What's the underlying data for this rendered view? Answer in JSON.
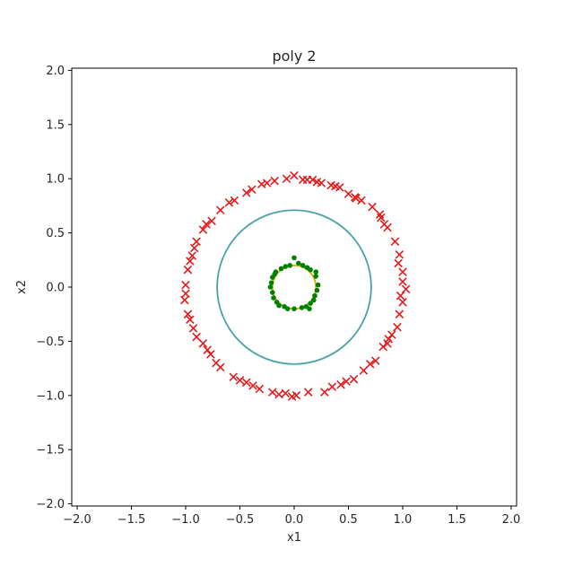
{
  "chart_data": {
    "type": "scatter",
    "title": "poly 2",
    "xlabel": "x1",
    "ylabel": "x2",
    "xlim": [
      -2.05,
      2.05
    ],
    "ylim": [
      -2.02,
      2.02
    ],
    "xticks": [
      -2.0,
      -1.5,
      -1.0,
      -0.5,
      0.0,
      0.5,
      1.0,
      1.5,
      2.0
    ],
    "yticks": [
      -2.0,
      -1.5,
      -1.0,
      -0.5,
      0.0,
      0.5,
      1.0,
      1.5,
      2.0
    ],
    "xtick_labels": [
      "−2.0",
      "−1.5",
      "−1.0",
      "−0.5",
      "0.0",
      "0.5",
      "1.0",
      "1.5",
      "2.0"
    ],
    "ytick_labels": [
      "−2.0",
      "−1.5",
      "−1.0",
      "−0.5",
      "0.0",
      "0.5",
      "1.0",
      "1.5",
      "2.0"
    ],
    "grid": false,
    "colors": {
      "outer_class": "#e41a1c",
      "inner_class": "#008000",
      "boundary": "#4aa3a3",
      "inner_boundary": "#d4b000"
    },
    "decision_boundary": {
      "center": [
        0.0,
        0.0
      ],
      "radius": 0.71
    },
    "inner_boundary": {
      "center": [
        0.0,
        0.0
      ],
      "radius": 0.2
    },
    "outer_points": [
      [
        0.0,
        1.03
      ],
      [
        0.12,
        0.99
      ],
      [
        0.21,
        0.97
      ],
      [
        0.34,
        0.94
      ],
      [
        0.5,
        0.86
      ],
      [
        0.62,
        0.8
      ],
      [
        0.72,
        0.74
      ],
      [
        0.8,
        0.64
      ],
      [
        0.86,
        0.55
      ],
      [
        0.93,
        0.42
      ],
      [
        0.97,
        0.3
      ],
      [
        1.0,
        0.14
      ],
      [
        1.03,
        -0.02
      ],
      [
        1.0,
        -0.14
      ],
      [
        0.97,
        -0.25
      ],
      [
        0.95,
        -0.37
      ],
      [
        0.87,
        -0.48
      ],
      [
        0.82,
        -0.55
      ],
      [
        0.75,
        -0.68
      ],
      [
        0.64,
        -0.77
      ],
      [
        0.55,
        -0.85
      ],
      [
        0.43,
        -0.9
      ],
      [
        0.28,
        -0.97
      ],
      [
        0.13,
        -0.97
      ],
      [
        0.02,
        -1.0
      ],
      [
        -0.08,
        -0.98
      ],
      [
        -0.2,
        -0.97
      ],
      [
        -0.32,
        -0.94
      ],
      [
        -0.44,
        -0.88
      ],
      [
        -0.56,
        -0.83
      ],
      [
        -0.68,
        -0.74
      ],
      [
        -0.77,
        -0.62
      ],
      [
        -0.84,
        -0.52
      ],
      [
        -0.93,
        -0.38
      ],
      [
        -0.98,
        -0.25
      ],
      [
        -1.01,
        -0.12
      ],
      [
        -1.0,
        0.02
      ],
      [
        -0.98,
        0.16
      ],
      [
        -0.94,
        0.29
      ],
      [
        -0.9,
        0.42
      ],
      [
        -0.84,
        0.53
      ],
      [
        -0.76,
        0.61
      ],
      [
        -0.68,
        0.71
      ],
      [
        -0.55,
        0.8
      ],
      [
        -0.44,
        0.87
      ],
      [
        -0.3,
        0.95
      ],
      [
        -0.18,
        0.98
      ],
      [
        -0.07,
        1.0
      ],
      [
        0.08,
        0.99
      ],
      [
        0.25,
        0.96
      ],
      [
        0.42,
        0.92
      ],
      [
        0.57,
        0.82
      ],
      [
        0.79,
        0.67
      ],
      [
        0.96,
        0.22
      ],
      [
        0.98,
        -0.08
      ],
      [
        0.9,
        -0.44
      ],
      [
        0.7,
        -0.71
      ],
      [
        0.35,
        -0.92
      ],
      [
        -0.14,
        -0.99
      ],
      [
        -0.5,
        -0.86
      ],
      [
        -0.8,
        -0.58
      ],
      [
        -0.96,
        -0.3
      ],
      [
        -1.0,
        -0.06
      ],
      [
        -0.96,
        0.24
      ],
      [
        -0.81,
        0.58
      ],
      [
        -0.6,
        0.78
      ],
      [
        -0.25,
        0.96
      ],
      [
        0.17,
        0.99
      ],
      [
        0.56,
        0.83
      ],
      [
        0.83,
        0.58
      ],
      [
        1.0,
        0.05
      ],
      [
        0.86,
        -0.52
      ],
      [
        0.48,
        -0.87
      ],
      [
        -0.02,
        -1.01
      ],
      [
        -0.38,
        -0.91
      ],
      [
        -0.72,
        -0.7
      ],
      [
        -0.9,
        -0.46
      ],
      [
        -0.92,
        0.36
      ],
      [
        -0.39,
        0.9
      ],
      [
        0.38,
        0.93
      ]
    ],
    "inner_points": [
      [
        0.0,
        0.27
      ],
      [
        0.08,
        0.2
      ],
      [
        0.15,
        0.16
      ],
      [
        0.2,
        0.1
      ],
      [
        0.22,
        0.02
      ],
      [
        0.19,
        -0.08
      ],
      [
        0.15,
        -0.15
      ],
      [
        0.07,
        -0.19
      ],
      [
        0.0,
        -0.2
      ],
      [
        -0.09,
        -0.18
      ],
      [
        -0.16,
        -0.14
      ],
      [
        -0.2,
        -0.05
      ],
      [
        -0.21,
        0.04
      ],
      [
        -0.18,
        0.12
      ],
      [
        -0.12,
        0.17
      ],
      [
        -0.04,
        0.2
      ],
      [
        0.12,
        0.18
      ],
      [
        0.18,
        -0.12
      ],
      [
        -0.14,
        -0.17
      ],
      [
        -0.2,
        0.09
      ],
      [
        0.04,
        0.22
      ],
      [
        0.21,
        -0.03
      ],
      [
        0.11,
        -0.18
      ],
      [
        -0.06,
        -0.2
      ],
      [
        -0.19,
        -0.1
      ],
      [
        -0.17,
        0.14
      ],
      [
        -0.08,
        0.19
      ],
      [
        0.2,
        0.14
      ],
      [
        0.14,
        -0.2
      ],
      [
        -0.22,
        0.0
      ]
    ]
  }
}
